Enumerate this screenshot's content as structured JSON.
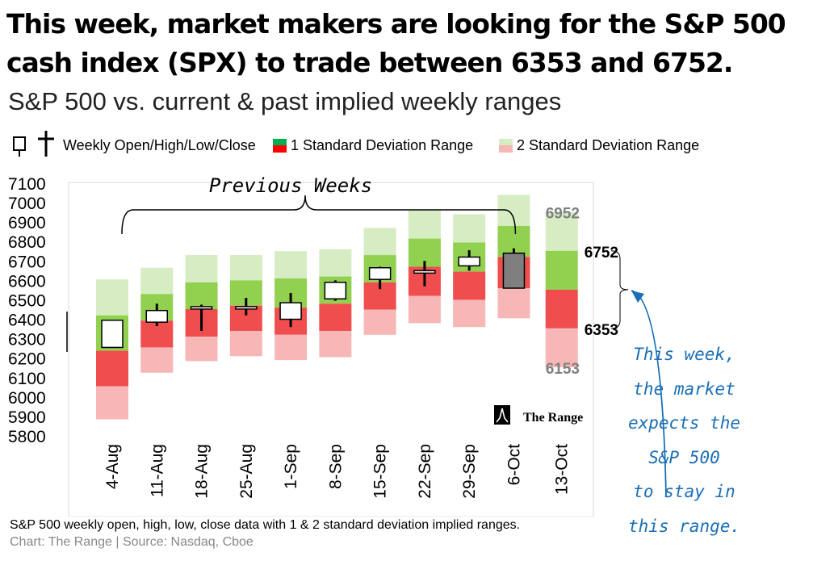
{
  "headline": {
    "line1": "This week, market makers are looking for the S&P 500",
    "line2": "cash index (SPX) to trade between  6353 and 6752."
  },
  "subtitle": "S&P 500 vs. current & past implied weekly ranges",
  "legend": {
    "ohlc": "Weekly Open/High/Low/Close",
    "sd1": "1 Standard Deviation Range",
    "sd2": "2 Standard Deviation Range"
  },
  "colors": {
    "sd2_upper": "#d6ecc3",
    "sd1_upper": "#92d050",
    "sd1_lower": "#f04e4e",
    "sd2_lower": "#f7b7b7",
    "candle_fill_up": "#ffffff",
    "candle_current": "#7f7f7f",
    "annotation": "#1a6fb5",
    "label_gray": "#808080"
  },
  "chart_data": {
    "type": "candlestick_ranges",
    "categories": [
      "4-Aug",
      "11-Aug",
      "18-Aug",
      "25-Aug",
      "1-Sep",
      "8-Sep",
      "15-Sep",
      "22-Sep",
      "29-Sep",
      "6-Oct",
      "13-Oct"
    ],
    "ylim": [
      5800,
      7100
    ],
    "yticks": [
      5800,
      5900,
      6000,
      6100,
      6200,
      6300,
      6400,
      6500,
      6600,
      6700,
      6800,
      6900,
      7000,
      7100
    ],
    "ranges": [
      {
        "sd2_low": 5885,
        "sd1_low": 6055,
        "mid": 6238,
        "sd1_high": 6420,
        "sd2_high": 6605
      },
      {
        "sd2_low": 6125,
        "sd1_low": 6255,
        "mid": 6393,
        "sd1_high": 6530,
        "sd2_high": 6665
      },
      {
        "sd2_low": 6185,
        "sd1_low": 6310,
        "mid": 6452,
        "sd1_high": 6590,
        "sd2_high": 6730
      },
      {
        "sd2_low": 6210,
        "sd1_low": 6340,
        "mid": 6470,
        "sd1_high": 6600,
        "sd2_high": 6730
      },
      {
        "sd2_low": 6190,
        "sd1_low": 6320,
        "mid": 6460,
        "sd1_high": 6610,
        "sd2_high": 6750
      },
      {
        "sd2_low": 6205,
        "sd1_low": 6340,
        "mid": 6480,
        "sd1_high": 6620,
        "sd2_high": 6760
      },
      {
        "sd2_low": 6320,
        "sd1_low": 6450,
        "mid": 6590,
        "sd1_high": 6730,
        "sd2_high": 6870
      },
      {
        "sd2_low": 6380,
        "sd1_low": 6520,
        "mid": 6670,
        "sd1_high": 6815,
        "sd2_high": 6960
      },
      {
        "sd2_low": 6360,
        "sd1_low": 6500,
        "mid": 6645,
        "sd1_high": 6795,
        "sd2_high": 6940
      },
      {
        "sd2_low": 6405,
        "sd1_low": 6560,
        "mid": 6720,
        "sd1_high": 6880,
        "sd2_high": 7040
      },
      {
        "sd2_low": 6153,
        "sd1_low": 6353,
        "mid": 6552,
        "sd1_high": 6752,
        "sd2_high": 6952
      }
    ],
    "ohlc": [
      {
        "open": 6255,
        "high": 6395,
        "low": 6255,
        "close": 6395
      },
      {
        "open": 6385,
        "high": 6480,
        "low": 6365,
        "close": 6445
      },
      {
        "open": 6455,
        "high": 6475,
        "low": 6340,
        "close": 6465
      },
      {
        "open": 6465,
        "high": 6510,
        "low": 6420,
        "close": 6460
      },
      {
        "open": 6400,
        "high": 6535,
        "low": 6360,
        "close": 6485
      },
      {
        "open": 6505,
        "high": 6600,
        "low": 6495,
        "close": 6590
      },
      {
        "open": 6605,
        "high": 6670,
        "low": 6555,
        "close": 6665
      },
      {
        "open": 6650,
        "high": 6700,
        "low": 6570,
        "close": 6640
      },
      {
        "open": 6675,
        "high": 6755,
        "low": 6650,
        "close": 6720
      },
      {
        "open": 6740,
        "high": 6765,
        "low": 6560,
        "close": 6560
      },
      null
    ],
    "current_labels": {
      "sd2_high": "6952",
      "sd1_high": "6752",
      "sd1_low": "6353",
      "sd2_low": "6153"
    },
    "bracket_label": "Previous Weeks",
    "watermark": "The Range"
  },
  "annotation": [
    "This week,",
    "the market",
    "expects the",
    "S&P 500",
    "to stay in",
    "this range."
  ],
  "footnote": "S&P 500 weekly open, high, low, close data with 1 & 2 standard deviation implied ranges.",
  "source": "Chart: The Range | Source: Nasdaq, Cboe"
}
